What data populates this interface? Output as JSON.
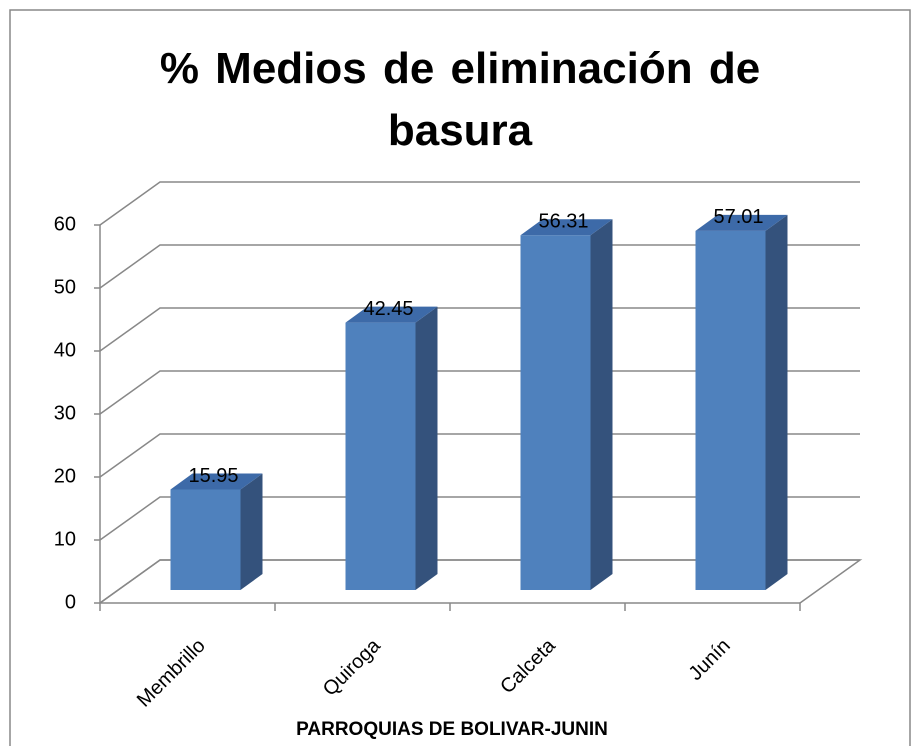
{
  "chart_data": {
    "type": "bar3d",
    "title": "% Medios de eliminación de basura",
    "x_label": "PARROQUIAS DE BOLIVAR-JUNIN",
    "categories": [
      "Membrillo",
      "Quiroga",
      "Calceta",
      "Junín"
    ],
    "values": [
      15.95,
      42.45,
      56.31,
      57.01
    ],
    "color": "#4f81bd",
    "ylim": [
      0,
      60
    ],
    "yticks": [
      0,
      10,
      20,
      30,
      40,
      50,
      60
    ],
    "grid": true
  }
}
